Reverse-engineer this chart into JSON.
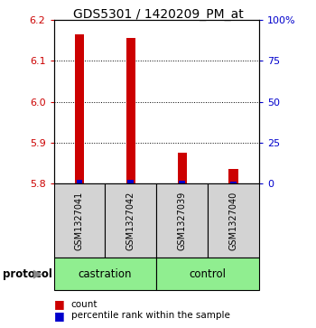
{
  "title": "GDS5301 / 1420209_PM_at",
  "samples": [
    "GSM1327041",
    "GSM1327042",
    "GSM1327039",
    "GSM1327040"
  ],
  "baseline": 5.8,
  "red_values": [
    6.165,
    6.155,
    5.875,
    5.835
  ],
  "blue_percentiles": [
    2.4,
    2.4,
    1.8,
    1.2
  ],
  "ylim_left": [
    5.8,
    6.2
  ],
  "ylim_right": [
    0,
    100
  ],
  "yticks_left": [
    5.8,
    5.9,
    6.0,
    6.1,
    6.2
  ],
  "yticks_right": [
    0,
    25,
    50,
    75,
    100
  ],
  "ytick_labels_right": [
    "0",
    "25",
    "50",
    "75",
    "100%"
  ],
  "bar_width": 0.18,
  "blue_bar_width": 0.12,
  "red_color": "#CC0000",
  "blue_color": "#0000CC",
  "sample_box_color": "#D3D3D3",
  "group_box_color": "#90EE90",
  "castration_label": "castration",
  "control_label": "control",
  "protocol_label": "protocol",
  "legend_red_label": "count",
  "legend_blue_label": "percentile rank within the sample"
}
